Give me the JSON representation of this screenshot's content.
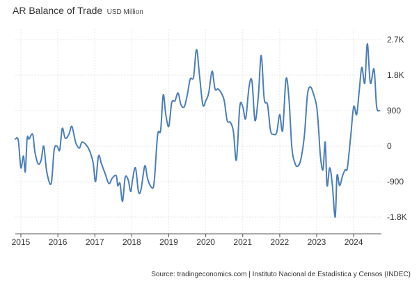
{
  "chart_data": {
    "type": "line",
    "title": "AR Balance of Trade",
    "subtitle": "USD Million",
    "xlabel": "",
    "ylabel": "",
    "x_ticks": [
      "2015",
      "2016",
      "2017",
      "2018",
      "2019",
      "2020",
      "2021",
      "2022",
      "2023",
      "2024"
    ],
    "x_range": [
      2014.85,
      2024.75
    ],
    "y_ticks": [
      2700,
      1800,
      900,
      0,
      -900,
      -1800
    ],
    "y_tick_labels": [
      "2.7K",
      "1.8K",
      "900",
      "0",
      "-900",
      "-1.8K"
    ],
    "ylim": [
      -1800,
      2700
    ],
    "grid": true,
    "series": [
      {
        "name": "Balance of Trade",
        "color": "#4a7ebb",
        "x": [
          2014.85,
          2014.93,
          2015.0,
          2015.07,
          2015.12,
          2015.17,
          2015.22,
          2015.32,
          2015.38,
          2015.47,
          2015.55,
          2015.62,
          2015.7,
          2015.82,
          2015.9,
          2015.98,
          2016.05,
          2016.12,
          2016.2,
          2016.3,
          2016.38,
          2016.48,
          2016.58,
          2016.65,
          2016.75,
          2016.85,
          2016.95,
          2017.02,
          2017.1,
          2017.18,
          2017.28,
          2017.38,
          2017.48,
          2017.58,
          2017.62,
          2017.68,
          2017.75,
          2017.82,
          2017.9,
          2017.97,
          2018.02,
          2018.1,
          2018.18,
          2018.25,
          2018.35,
          2018.42,
          2018.5,
          2018.58,
          2018.62,
          2018.7,
          2018.78,
          2018.85,
          2018.92,
          2019.0,
          2019.08,
          2019.17,
          2019.25,
          2019.33,
          2019.42,
          2019.5,
          2019.58,
          2019.67,
          2019.75,
          2019.83,
          2019.92,
          2020.0,
          2020.08,
          2020.17,
          2020.25,
          2020.33,
          2020.42,
          2020.5,
          2020.58,
          2020.67,
          2020.75,
          2020.83,
          2020.92,
          2021.0,
          2021.08,
          2021.17,
          2021.25,
          2021.33,
          2021.42,
          2021.5,
          2021.58,
          2021.67,
          2021.75,
          2021.83,
          2021.92,
          2022.0,
          2022.08,
          2022.17,
          2022.25,
          2022.33,
          2022.42,
          2022.5,
          2022.58,
          2022.67,
          2022.75,
          2022.83,
          2022.92,
          2023.0,
          2023.05,
          2023.1,
          2023.17,
          2023.23,
          2023.28,
          2023.35,
          2023.42,
          2023.5,
          2023.55,
          2023.62,
          2023.7,
          2023.77,
          2023.83,
          2023.92,
          2024.0,
          2024.08,
          2024.15,
          2024.22,
          2024.3,
          2024.37,
          2024.45,
          2024.55,
          2024.62,
          2024.7
        ],
        "values": [
          180,
          150,
          -550,
          -250,
          -650,
          200,
          180,
          300,
          -150,
          -450,
          -350,
          0,
          -650,
          -950,
          -100,
          0,
          -100,
          450,
          200,
          300,
          500,
          100,
          -50,
          100,
          50,
          -100,
          -400,
          -900,
          -250,
          -450,
          -700,
          -950,
          -800,
          -750,
          -1000,
          -950,
          -1400,
          -800,
          -850,
          -1150,
          -850,
          -550,
          -1150,
          -1100,
          -500,
          -800,
          -1000,
          -1050,
          -750,
          300,
          400,
          1300,
          800,
          500,
          1100,
          1150,
          1350,
          1050,
          1000,
          1300,
          1700,
          1750,
          2450,
          1800,
          1050,
          1150,
          1350,
          1900,
          1450,
          1450,
          1350,
          1150,
          650,
          600,
          350,
          -350,
          1000,
          1000,
          700,
          1500,
          1650,
          650,
          1250,
          2300,
          1200,
          1050,
          400,
          300,
          350,
          800,
          400,
          1700,
          1200,
          -50,
          -450,
          -500,
          -300,
          300,
          1300,
          1500,
          1300,
          1000,
          450,
          -250,
          -600,
          100,
          -1000,
          -550,
          -950,
          -1800,
          -750,
          -1000,
          -750,
          -600,
          -550,
          250,
          1000,
          800,
          1400,
          2000,
          1600,
          2600,
          1600,
          1950,
          1000,
          900
        ]
      }
    ],
    "source": "Source: tradingeconomics.com | Instituto Nacional de Estadística y Censos (INDEC)"
  }
}
